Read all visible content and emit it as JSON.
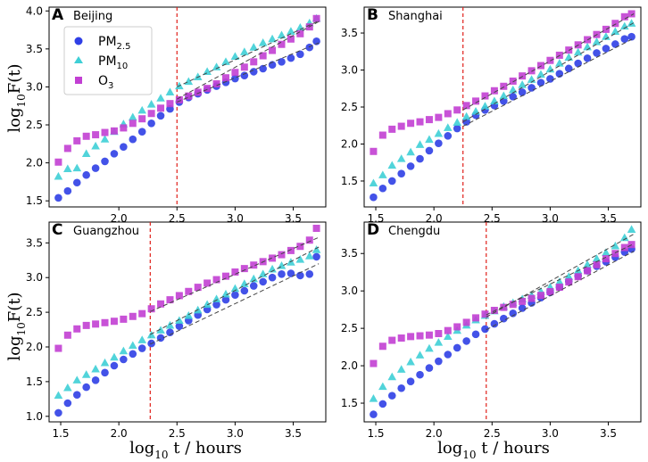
{
  "figure": {
    "ylabel": "log10F(t)",
    "ylabel_main": "log",
    "ylabel_sub": "10",
    "ylabel_tail": "F(t)",
    "xlabel": "log10 t / hours",
    "xlabel_main": "log",
    "xlabel_sub": "10",
    "xlabel_tail": " t / hours"
  },
  "legend": [
    {
      "name": "PM2.5",
      "base": "PM",
      "sub": "2.5",
      "marker": "circle",
      "color": "#2f3fe6"
    },
    {
      "name": "PM10",
      "base": "PM",
      "sub": "10",
      "marker": "triangle",
      "color": "#3ecfd6"
    },
    {
      "name": "O3",
      "base": "O",
      "sub": "3",
      "marker": "square",
      "color": "#c23fd3"
    }
  ],
  "colors": {
    "pm25": "#2f3fe6",
    "pm10": "#3ecfd6",
    "o3": "#c23fd3",
    "vline": "#e0201a",
    "fit": "#444444"
  },
  "chart_data": [
    {
      "type": "scatter",
      "letter": "A",
      "title": "Beijing",
      "xlim": [
        1.4,
        3.78
      ],
      "ylim": [
        1.42,
        4.05
      ],
      "xticks": [
        "2.0",
        "2.5",
        "3.0",
        "3.5"
      ],
      "xtick_values": [
        2.0,
        2.5,
        3.0,
        3.5
      ],
      "yticks": [
        "1.5",
        "2.0",
        "2.5",
        "3.0",
        "3.5",
        "4.0"
      ],
      "ytick_values": [
        1.5,
        2.0,
        2.5,
        3.0,
        3.5,
        4.0
      ],
      "crossover_x": 2.5,
      "series": [
        {
          "name": "PM2.5",
          "x": [
            1.48,
            1.56,
            1.64,
            1.72,
            1.8,
            1.88,
            1.96,
            2.04,
            2.12,
            2.2,
            2.28,
            2.36,
            2.44,
            2.52,
            2.6,
            2.68,
            2.76,
            2.84,
            2.92,
            3.0,
            3.08,
            3.16,
            3.24,
            3.32,
            3.4,
            3.48,
            3.56,
            3.64,
            3.7
          ],
          "y": [
            1.54,
            1.63,
            1.74,
            1.84,
            1.93,
            2.02,
            2.12,
            2.21,
            2.31,
            2.41,
            2.52,
            2.62,
            2.71,
            2.8,
            2.86,
            2.91,
            2.96,
            3.01,
            3.06,
            3.11,
            3.15,
            3.2,
            3.24,
            3.29,
            3.33,
            3.38,
            3.43,
            3.52,
            3.6
          ]
        },
        {
          "name": "PM10",
          "x": [
            1.48,
            1.56,
            1.64,
            1.72,
            1.8,
            1.88,
            1.96,
            2.04,
            2.12,
            2.2,
            2.28,
            2.36,
            2.44,
            2.52,
            2.6,
            2.68,
            2.76,
            2.84,
            2.92,
            3.0,
            3.08,
            3.16,
            3.24,
            3.32,
            3.4,
            3.48,
            3.56,
            3.64,
            3.7
          ],
          "y": [
            1.82,
            1.92,
            1.93,
            2.12,
            2.22,
            2.31,
            2.41,
            2.51,
            2.6,
            2.69,
            2.77,
            2.85,
            2.93,
            3.01,
            3.07,
            3.13,
            3.2,
            3.26,
            3.33,
            3.4,
            3.46,
            3.52,
            3.58,
            3.63,
            3.68,
            3.73,
            3.78,
            3.84,
            3.9
          ]
        },
        {
          "name": "O3",
          "x": [
            1.48,
            1.56,
            1.64,
            1.72,
            1.8,
            1.88,
            1.96,
            2.04,
            2.12,
            2.2,
            2.28,
            2.36,
            2.44,
            2.52,
            2.6,
            2.68,
            2.76,
            2.84,
            2.92,
            3.0,
            3.08,
            3.16,
            3.24,
            3.32,
            3.4,
            3.48,
            3.56,
            3.64,
            3.7
          ],
          "y": [
            2.01,
            2.19,
            2.29,
            2.35,
            2.37,
            2.4,
            2.42,
            2.46,
            2.52,
            2.58,
            2.65,
            2.72,
            2.78,
            2.83,
            2.88,
            2.93,
            2.98,
            3.04,
            3.12,
            3.19,
            3.26,
            3.33,
            3.41,
            3.48,
            3.56,
            3.63,
            3.7,
            3.79,
            3.9
          ]
        }
      ],
      "fits": [
        {
          "name": "PM2.5",
          "x": [
            2.5,
            3.72
          ],
          "y": [
            2.8,
            3.58
          ]
        },
        {
          "name": "PM10",
          "x": [
            2.5,
            3.72
          ],
          "y": [
            3.0,
            3.87
          ]
        },
        {
          "name": "O3",
          "x": [
            2.5,
            3.72
          ],
          "y": [
            2.84,
            3.86
          ]
        }
      ],
      "legend": true
    },
    {
      "type": "scatter",
      "letter": "B",
      "title": "Shanghai",
      "xlim": [
        1.4,
        3.78
      ],
      "ylim": [
        1.15,
        3.85
      ],
      "xticks": [
        "1.5",
        "2.0",
        "2.5",
        "3.0",
        "3.5"
      ],
      "xtick_values": [
        1.5,
        2.0,
        2.5,
        3.0,
        3.5
      ],
      "yticks": [
        "1.5",
        "2.0",
        "2.5",
        "3.0",
        "3.5"
      ],
      "ytick_values": [
        1.5,
        2.0,
        2.5,
        3.0,
        3.5
      ],
      "crossover_x": 2.25,
      "series": [
        {
          "name": "PM2.5",
          "x": [
            1.48,
            1.56,
            1.64,
            1.72,
            1.8,
            1.88,
            1.96,
            2.04,
            2.12,
            2.2,
            2.28,
            2.36,
            2.44,
            2.52,
            2.6,
            2.68,
            2.76,
            2.84,
            2.92,
            3.0,
            3.08,
            3.16,
            3.24,
            3.32,
            3.4,
            3.48,
            3.56,
            3.64,
            3.7
          ],
          "y": [
            1.28,
            1.4,
            1.5,
            1.6,
            1.7,
            1.8,
            1.91,
            2.01,
            2.11,
            2.21,
            2.3,
            2.39,
            2.46,
            2.52,
            2.58,
            2.64,
            2.7,
            2.76,
            2.83,
            2.88,
            2.95,
            3.02,
            3.09,
            3.16,
            3.23,
            3.29,
            3.35,
            3.42,
            3.45
          ]
        },
        {
          "name": "PM10",
          "x": [
            1.48,
            1.56,
            1.64,
            1.72,
            1.8,
            1.88,
            1.96,
            2.04,
            2.12,
            2.2,
            2.28,
            2.36,
            2.44,
            2.52,
            2.6,
            2.68,
            2.76,
            2.84,
            2.92,
            3.0,
            3.08,
            3.16,
            3.24,
            3.32,
            3.4,
            3.48,
            3.56,
            3.64,
            3.7
          ],
          "y": [
            1.47,
            1.58,
            1.71,
            1.8,
            1.89,
            1.99,
            2.06,
            2.14,
            2.22,
            2.29,
            2.37,
            2.44,
            2.51,
            2.58,
            2.65,
            2.73,
            2.8,
            2.87,
            2.94,
            3.01,
            3.09,
            3.17,
            3.24,
            3.31,
            3.38,
            3.45,
            3.52,
            3.59,
            3.63
          ]
        },
        {
          "name": "O3",
          "x": [
            1.48,
            1.56,
            1.64,
            1.72,
            1.8,
            1.88,
            1.96,
            2.04,
            2.12,
            2.2,
            2.28,
            2.36,
            2.44,
            2.52,
            2.6,
            2.68,
            2.76,
            2.84,
            2.92,
            3.0,
            3.08,
            3.16,
            3.24,
            3.32,
            3.4,
            3.48,
            3.56,
            3.64,
            3.7
          ],
          "y": [
            1.9,
            2.12,
            2.2,
            2.24,
            2.28,
            2.3,
            2.33,
            2.36,
            2.41,
            2.46,
            2.52,
            2.58,
            2.65,
            2.72,
            2.78,
            2.85,
            2.92,
            2.99,
            3.06,
            3.13,
            3.2,
            3.27,
            3.34,
            3.41,
            3.48,
            3.55,
            3.63,
            3.72,
            3.76
          ]
        }
      ],
      "fits": [
        {
          "name": "PM2.5",
          "x": [
            2.25,
            3.72
          ],
          "y": [
            2.24,
            3.43
          ]
        },
        {
          "name": "PM10",
          "x": [
            2.25,
            3.72
          ],
          "y": [
            2.3,
            3.64
          ]
        },
        {
          "name": "O3",
          "x": [
            2.25,
            3.72
          ],
          "y": [
            2.46,
            3.76
          ]
        }
      ],
      "legend": false
    },
    {
      "type": "scatter",
      "letter": "C",
      "title": "Guangzhou",
      "xlim": [
        1.4,
        3.78
      ],
      "ylim": [
        0.92,
        3.8
      ],
      "xticks": [
        "1.5",
        "2.0",
        "2.5",
        "3.0",
        "3.5"
      ],
      "xtick_values": [
        1.5,
        2.0,
        2.5,
        3.0,
        3.5
      ],
      "yticks": [
        "1.0",
        "1.5",
        "2.0",
        "2.5",
        "3.0",
        "3.5"
      ],
      "ytick_values": [
        1.0,
        1.5,
        2.0,
        2.5,
        3.0,
        3.5
      ],
      "crossover_x": 2.27,
      "series": [
        {
          "name": "PM2.5",
          "x": [
            1.48,
            1.56,
            1.64,
            1.72,
            1.8,
            1.88,
            1.96,
            2.04,
            2.12,
            2.2,
            2.28,
            2.36,
            2.44,
            2.52,
            2.6,
            2.68,
            2.76,
            2.84,
            2.92,
            3.0,
            3.08,
            3.16,
            3.24,
            3.32,
            3.4,
            3.48,
            3.56,
            3.64,
            3.7
          ],
          "y": [
            1.05,
            1.19,
            1.31,
            1.42,
            1.52,
            1.63,
            1.73,
            1.82,
            1.9,
            1.98,
            2.05,
            2.13,
            2.21,
            2.3,
            2.38,
            2.46,
            2.54,
            2.61,
            2.68,
            2.75,
            2.81,
            2.88,
            2.94,
            3.0,
            3.05,
            3.06,
            3.03,
            3.05,
            3.3
          ]
        },
        {
          "name": "PM10",
          "x": [
            1.48,
            1.56,
            1.64,
            1.72,
            1.8,
            1.88,
            1.96,
            2.04,
            2.12,
            2.2,
            2.28,
            2.36,
            2.44,
            2.52,
            2.6,
            2.68,
            2.76,
            2.84,
            2.92,
            3.0,
            3.08,
            3.16,
            3.24,
            3.32,
            3.4,
            3.48,
            3.56,
            3.64,
            3.7
          ],
          "y": [
            1.3,
            1.41,
            1.52,
            1.6,
            1.68,
            1.77,
            1.85,
            1.94,
            2.02,
            2.1,
            2.17,
            2.24,
            2.31,
            2.38,
            2.45,
            2.53,
            2.61,
            2.69,
            2.76,
            2.84,
            2.91,
            2.98,
            3.05,
            3.12,
            3.17,
            3.22,
            3.26,
            3.31,
            3.4
          ]
        },
        {
          "name": "O3",
          "x": [
            1.48,
            1.56,
            1.64,
            1.72,
            1.8,
            1.88,
            1.96,
            2.04,
            2.12,
            2.2,
            2.28,
            2.36,
            2.44,
            2.52,
            2.6,
            2.68,
            2.76,
            2.84,
            2.92,
            3.0,
            3.08,
            3.16,
            3.24,
            3.32,
            3.4,
            3.48,
            3.56,
            3.64,
            3.7
          ],
          "y": [
            1.98,
            2.17,
            2.26,
            2.31,
            2.33,
            2.35,
            2.37,
            2.4,
            2.44,
            2.48,
            2.55,
            2.62,
            2.68,
            2.74,
            2.8,
            2.86,
            2.92,
            2.97,
            3.02,
            3.08,
            3.13,
            3.18,
            3.23,
            3.28,
            3.33,
            3.39,
            3.45,
            3.54,
            3.71
          ]
        }
      ],
      "fits": [
        {
          "name": "PM2.5",
          "x": [
            2.27,
            3.72
          ],
          "y": [
            2.04,
            3.2
          ]
        },
        {
          "name": "PM10",
          "x": [
            2.27,
            3.72
          ],
          "y": [
            2.18,
            3.44
          ]
        },
        {
          "name": "O3",
          "x": [
            2.27,
            3.72
          ],
          "y": [
            2.51,
            3.58
          ]
        }
      ],
      "legend": false
    },
    {
      "type": "scatter",
      "letter": "D",
      "title": "Chengdu",
      "xlim": [
        1.4,
        3.78
      ],
      "ylim": [
        1.25,
        3.92
      ],
      "xticks": [
        "1.5",
        "2.0",
        "2.5",
        "3.0",
        "3.5"
      ],
      "xtick_values": [
        1.5,
        2.0,
        2.5,
        3.0,
        3.5
      ],
      "yticks": [
        "1.5",
        "2.0",
        "2.5",
        "3.0",
        "3.5"
      ],
      "ytick_values": [
        1.5,
        2.0,
        2.5,
        3.0,
        3.5
      ],
      "crossover_x": 2.45,
      "series": [
        {
          "name": "PM2.5",
          "x": [
            1.48,
            1.56,
            1.64,
            1.72,
            1.8,
            1.88,
            1.96,
            2.04,
            2.12,
            2.2,
            2.28,
            2.36,
            2.44,
            2.52,
            2.6,
            2.68,
            2.76,
            2.84,
            2.92,
            3.0,
            3.08,
            3.16,
            3.24,
            3.32,
            3.4,
            3.48,
            3.56,
            3.64,
            3.7
          ],
          "y": [
            1.35,
            1.49,
            1.6,
            1.7,
            1.79,
            1.88,
            1.97,
            2.06,
            2.15,
            2.24,
            2.33,
            2.42,
            2.49,
            2.56,
            2.63,
            2.7,
            2.77,
            2.84,
            2.91,
            2.98,
            3.05,
            3.13,
            3.2,
            3.27,
            3.33,
            3.39,
            3.45,
            3.52,
            3.56
          ]
        },
        {
          "name": "PM10",
          "x": [
            1.48,
            1.56,
            1.64,
            1.72,
            1.8,
            1.88,
            1.96,
            2.04,
            2.12,
            2.2,
            2.28,
            2.36,
            2.44,
            2.52,
            2.6,
            2.68,
            2.76,
            2.84,
            2.92,
            3.0,
            3.08,
            3.16,
            3.24,
            3.32,
            3.4,
            3.48,
            3.56,
            3.64,
            3.7
          ],
          "y": [
            1.56,
            1.72,
            1.85,
            1.95,
            2.05,
            2.14,
            2.23,
            2.31,
            2.39,
            2.47,
            2.54,
            2.61,
            2.67,
            2.73,
            2.79,
            2.84,
            2.89,
            2.94,
            2.99,
            3.05,
            3.12,
            3.19,
            3.27,
            3.35,
            3.43,
            3.51,
            3.6,
            3.71,
            3.82
          ]
        },
        {
          "name": "O3",
          "x": [
            1.48,
            1.56,
            1.64,
            1.72,
            1.8,
            1.88,
            1.96,
            2.04,
            2.12,
            2.2,
            2.28,
            2.36,
            2.44,
            2.52,
            2.6,
            2.68,
            2.76,
            2.84,
            2.92,
            3.0,
            3.08,
            3.16,
            3.24,
            3.32,
            3.4,
            3.48,
            3.56,
            3.64,
            3.7
          ],
          "y": [
            2.03,
            2.26,
            2.34,
            2.37,
            2.39,
            2.4,
            2.41,
            2.43,
            2.47,
            2.52,
            2.58,
            2.64,
            2.69,
            2.74,
            2.78,
            2.82,
            2.86,
            2.9,
            2.94,
            2.99,
            3.05,
            3.12,
            3.19,
            3.27,
            3.35,
            3.43,
            3.5,
            3.58,
            3.62
          ]
        }
      ],
      "fits": [
        {
          "name": "PM2.5",
          "x": [
            2.45,
            3.72
          ],
          "y": [
            2.48,
            3.53
          ]
        },
        {
          "name": "PM10",
          "x": [
            2.45,
            3.72
          ],
          "y": [
            2.65,
            3.76
          ]
        },
        {
          "name": "O3",
          "x": [
            2.45,
            3.72
          ],
          "y": [
            2.68,
            3.63
          ]
        }
      ],
      "legend": false
    }
  ]
}
